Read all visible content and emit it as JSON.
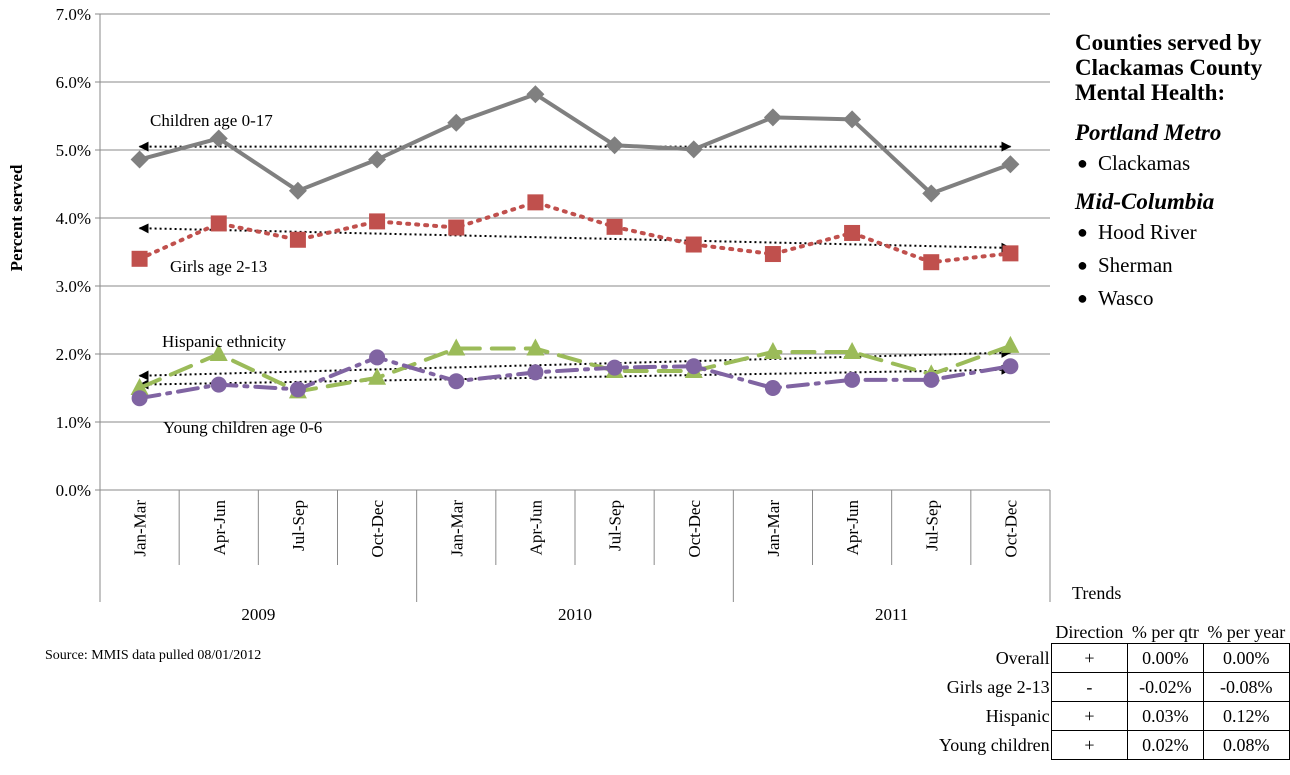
{
  "chart_data": {
    "type": "line",
    "title": "",
    "ylabel": "Percent served",
    "ylim": [
      0,
      7
    ],
    "y_ticks": [
      "0.0%",
      "1.0%",
      "2.0%",
      "3.0%",
      "4.0%",
      "5.0%",
      "6.0%",
      "7.0%"
    ],
    "categories": [
      "Jan-Mar",
      "Apr-Jun",
      "Jul-Sep",
      "Oct-Dec",
      "Jan-Mar",
      "Apr-Jun",
      "Jul-Sep",
      "Oct-Dec",
      "Jan-Mar",
      "Apr-Jun",
      "Jul-Sep",
      "Oct-Dec"
    ],
    "year_groups": [
      {
        "label": "2009",
        "start": 0,
        "end": 3
      },
      {
        "label": "2010",
        "start": 4,
        "end": 7
      },
      {
        "label": "2011",
        "start": 8,
        "end": 11
      }
    ],
    "grid": true,
    "series": [
      {
        "name": "Children age 0-17",
        "color": "#808080",
        "marker": "diamond",
        "dash": "solid",
        "values": [
          4.86,
          5.17,
          4.4,
          4.86,
          5.4,
          5.82,
          5.07,
          5.01,
          5.48,
          5.45,
          4.36,
          4.79
        ],
        "trend": [
          5.05,
          5.05
        ]
      },
      {
        "name": "Girls age 2-13",
        "color": "#c0504d",
        "marker": "square",
        "dash": "dotted",
        "values": [
          3.4,
          3.92,
          3.68,
          3.95,
          3.86,
          4.23,
          3.87,
          3.61,
          3.47,
          3.78,
          3.35,
          3.48
        ],
        "trend": [
          3.85,
          3.56
        ]
      },
      {
        "name": "Hispanic ethnicity",
        "color": "#9bbb59",
        "marker": "triangle",
        "dash": "longdash",
        "values": [
          1.5,
          2.0,
          1.45,
          1.65,
          2.08,
          2.08,
          1.75,
          1.75,
          2.03,
          2.03,
          1.7,
          2.12
        ],
        "trend": [
          1.68,
          2.02
        ]
      },
      {
        "name": "Young children age 0-6",
        "color": "#8064a2",
        "marker": "circle",
        "dash": "dashdot",
        "values": [
          1.35,
          1.55,
          1.48,
          1.95,
          1.6,
          1.73,
          1.8,
          1.82,
          1.5,
          1.62,
          1.62,
          1.82
        ],
        "trend": [
          1.55,
          1.77
        ]
      }
    ],
    "annotations": [
      "Children age 0-17",
      "Girls age 2-13",
      "Hispanic ethnicity",
      "Young children age 0-6"
    ]
  },
  "sidebar": {
    "title": "Counties served by Clackamas County Mental Health:",
    "regions": [
      {
        "name": "Portland Metro",
        "counties": [
          "Clackamas"
        ]
      },
      {
        "name": "Mid-Columbia",
        "counties": [
          "Hood River",
          "Sherman",
          "Wasco"
        ]
      }
    ]
  },
  "source": "Source: MMIS data pulled 08/01/2012",
  "trends": {
    "heading": "Trends",
    "columns": [
      "Direction",
      "% per qtr",
      "% per year"
    ],
    "rows": [
      {
        "label": "Overall",
        "direction": "+",
        "per_qtr": "0.00%",
        "per_year": "0.00%"
      },
      {
        "label": "Girls age 2-13",
        "direction": "-",
        "per_qtr": "-0.02%",
        "per_year": "-0.08%"
      },
      {
        "label": "Hispanic",
        "direction": "+",
        "per_qtr": "0.03%",
        "per_year": "0.12%"
      },
      {
        "label": "Young children",
        "direction": "+",
        "per_qtr": "0.02%",
        "per_year": "0.08%"
      }
    ]
  }
}
